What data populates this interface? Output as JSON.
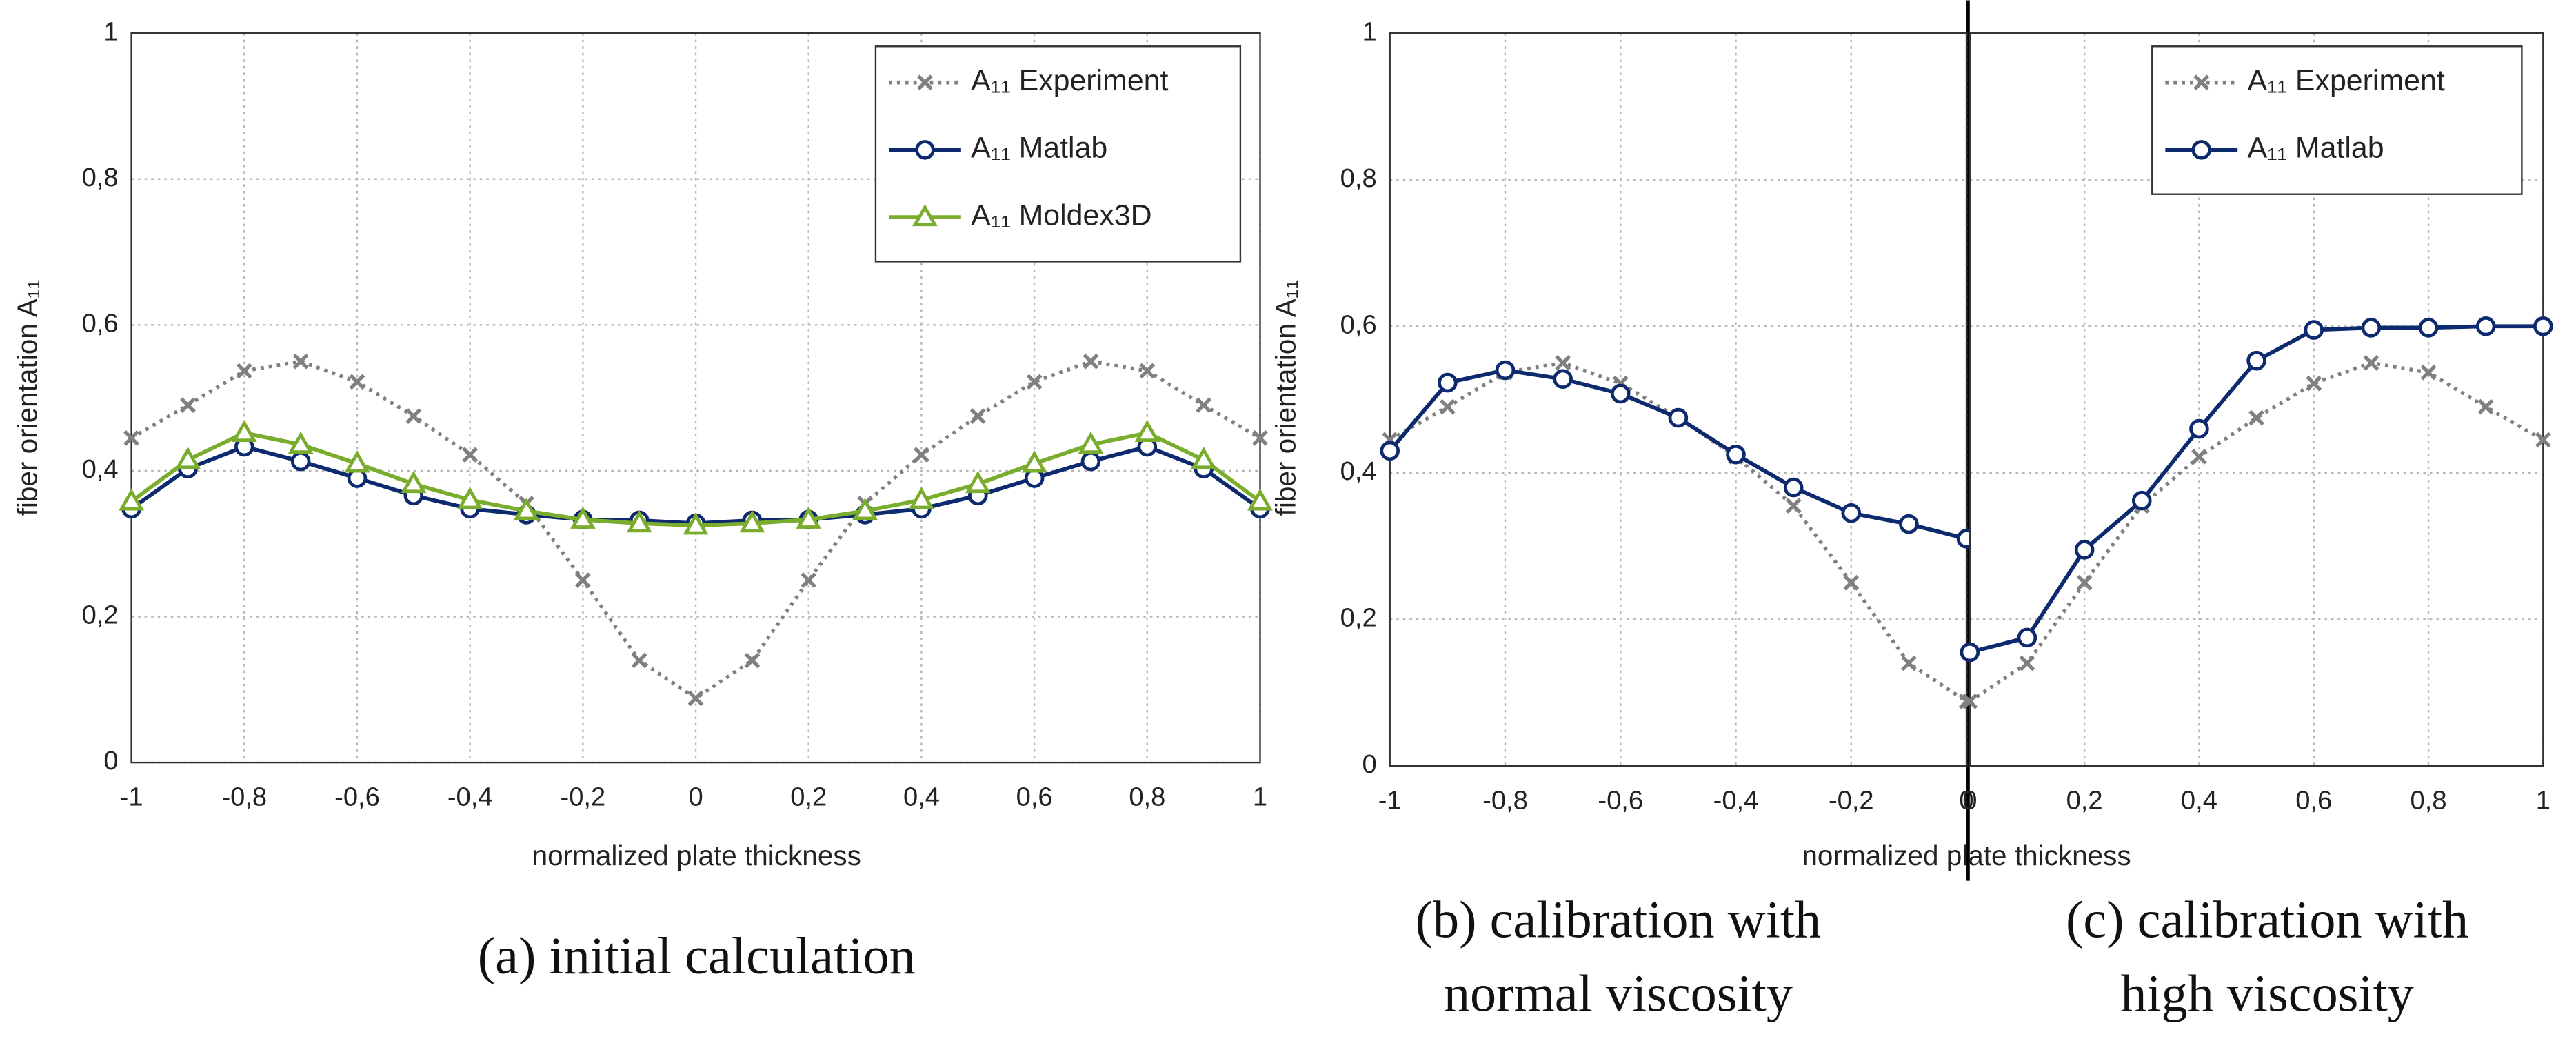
{
  "chart_data": [
    {
      "type": "line",
      "caption": [
        "(a) initial calculation"
      ],
      "xlabel": "normalized plate thickness",
      "ylabel": "fiber orientation A₁₁",
      "x": [
        -1,
        -0.9,
        -0.8,
        -0.7,
        -0.6,
        -0.5,
        -0.4,
        -0.3,
        -0.2,
        -0.1,
        0,
        0.1,
        0.2,
        0.3,
        0.4,
        0.5,
        0.6,
        0.7,
        0.8,
        0.9,
        1
      ],
      "series": [
        {
          "name": "A₁₁ Experiment",
          "color": "#808080",
          "marker": "x",
          "dash": true,
          "values": [
            0.445,
            0.49,
            0.537,
            0.55,
            0.522,
            0.475,
            0.422,
            0.355,
            0.25,
            0.14,
            0.088,
            0.14,
            0.25,
            0.355,
            0.422,
            0.475,
            0.522,
            0.55,
            0.537,
            0.49,
            0.445
          ]
        },
        {
          "name": "A₁₁ Matlab",
          "color": "#0d2a6e",
          "marker": "o",
          "values": [
            0.348,
            0.403,
            0.433,
            0.413,
            0.39,
            0.366,
            0.348,
            0.34,
            0.333,
            0.332,
            0.328,
            0.332,
            0.333,
            0.34,
            0.348,
            0.366,
            0.39,
            0.413,
            0.433,
            0.403,
            0.348
          ]
        },
        {
          "name": "A₁₁ Moldex3D",
          "color": "#7aad2e",
          "marker": "^",
          "values": [
            0.358,
            0.415,
            0.452,
            0.436,
            0.41,
            0.382,
            0.36,
            0.345,
            0.333,
            0.328,
            0.325,
            0.328,
            0.333,
            0.345,
            0.36,
            0.382,
            0.41,
            0.436,
            0.452,
            0.415,
            0.358
          ]
        }
      ],
      "xlim": [
        -1,
        1
      ],
      "ylim": [
        0,
        1
      ],
      "xticks": [
        -1,
        {
          "value": -0.8,
          "label": "-0,8"
        },
        {
          "value": -0.6,
          "label": "-0,6"
        },
        {
          "value": -0.4,
          "label": "-0,4"
        },
        {
          "value": -0.2,
          "label": "-0,2"
        },
        0,
        {
          "value": 0.2,
          "label": "0,2"
        },
        {
          "value": 0.4,
          "label": "0,4"
        },
        {
          "value": 0.6,
          "label": "0,6"
        },
        {
          "value": 0.8,
          "label": "0,8"
        },
        1
      ],
      "yticks": [
        0,
        {
          "value": 0.2,
          "label": "0,2"
        },
        {
          "value": 0.4,
          "label": "0,4"
        },
        {
          "value": 0.6,
          "label": "0,6"
        },
        {
          "value": 0.8,
          "label": "0,8"
        },
        1
      ],
      "grid": true,
      "legend": "upper right"
    },
    {
      "type": "line",
      "caption": [
        "(b) calibration with",
        "normal viscosity"
      ],
      "xlabel": "normalized plate thickness",
      "ylabel": "fiber orientation A₁₁",
      "x": [
        -1,
        -0.9,
        -0.8,
        -0.7,
        -0.6,
        -0.5,
        -0.4,
        -0.3,
        -0.2,
        -0.1,
        0
      ],
      "series": [
        {
          "name": "A₁₁ Experiment",
          "color": "#808080",
          "marker": "x",
          "dash": true,
          "values": [
            0.445,
            0.49,
            0.537,
            0.55,
            0.522,
            0.475,
            0.422,
            0.355,
            0.25,
            0.14,
            0.088
          ]
        },
        {
          "name": "A₁₁ Matlab",
          "color": "#0d2a6e",
          "marker": "o",
          "values": [
            0.43,
            0.523,
            0.54,
            0.528,
            0.508,
            0.475,
            0.425,
            0.38,
            0.345,
            0.33,
            0.31
          ]
        }
      ],
      "xlim": [
        -1,
        0
      ],
      "ylim": [
        0,
        1
      ],
      "xticks": [
        -1,
        {
          "value": -0.8,
          "label": "-0,8"
        },
        {
          "value": -0.6,
          "label": "-0,6"
        },
        {
          "value": -0.4,
          "label": "-0,4"
        },
        {
          "value": -0.2,
          "label": "-0,2"
        },
        0
      ],
      "yticks": [
        0,
        {
          "value": 0.2,
          "label": "0,2"
        },
        {
          "value": 0.4,
          "label": "0,4"
        },
        {
          "value": 0.6,
          "label": "0,6"
        },
        {
          "value": 0.8,
          "label": "0,8"
        },
        1
      ],
      "grid": true
    },
    {
      "type": "line",
      "caption": [
        "(c) calibration with",
        "high viscosity"
      ],
      "x": [
        0,
        0.1,
        0.2,
        0.3,
        0.4,
        0.5,
        0.6,
        0.7,
        0.8,
        0.9,
        1
      ],
      "series": [
        {
          "name": "A₁₁ Experiment",
          "color": "#808080",
          "marker": "x",
          "dash": true,
          "values": [
            0.088,
            0.14,
            0.25,
            0.355,
            0.422,
            0.475,
            0.522,
            0.55,
            0.537,
            0.49,
            0.445
          ]
        },
        {
          "name": "A₁₁ Matlab",
          "color": "#0d2a6e",
          "marker": "o",
          "values": [
            0.155,
            0.175,
            0.295,
            0.362,
            0.46,
            0.553,
            0.595,
            0.598,
            0.598,
            0.6,
            0.6
          ]
        }
      ],
      "xlim": [
        0,
        1
      ],
      "ylim": [
        0,
        1
      ],
      "xticks": [
        0,
        {
          "value": 0.2,
          "label": "0,2"
        },
        {
          "value": 0.4,
          "label": "0,4"
        },
        {
          "value": 0.6,
          "label": "0,6"
        },
        {
          "value": 0.8,
          "label": "0,8"
        },
        1
      ],
      "grid": true,
      "legend": "upper right"
    }
  ]
}
